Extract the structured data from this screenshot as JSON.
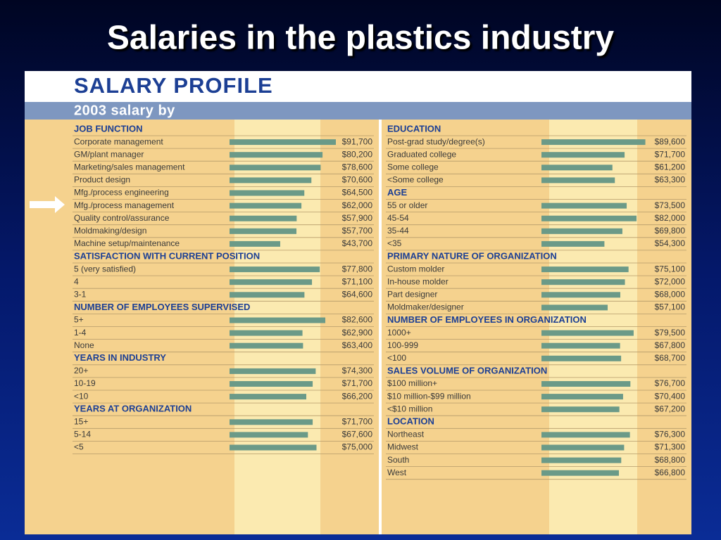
{
  "slide_title": "Salaries in the plastics industry",
  "profile": {
    "title": "SALARY PROFILE",
    "subtitle": "2003 salary by",
    "columns": [
      [
        {
          "heading": "JOB FUNCTION",
          "items": [
            {
              "label": "Corporate management",
              "value": 91700,
              "value_label": "$91,700"
            },
            {
              "label": "GM/plant manager",
              "value": 80200,
              "value_label": "$80,200"
            },
            {
              "label": "Marketing/sales management",
              "value": 78600,
              "value_label": "$78,600"
            },
            {
              "label": "Product design",
              "value": 70600,
              "value_label": "$70,600"
            },
            {
              "label": "Mfg./process engineering",
              "value": 64500,
              "value_label": "$64,500"
            },
            {
              "label": "Mfg./process management",
              "value": 62000,
              "value_label": "$62,000"
            },
            {
              "label": "Quality control/assurance",
              "value": 57900,
              "value_label": "$57,900"
            },
            {
              "label": "Moldmaking/design",
              "value": 57700,
              "value_label": "$57,700"
            },
            {
              "label": "Machine setup/maintenance",
              "value": 43700,
              "value_label": "$43,700"
            }
          ]
        },
        {
          "heading": "SATISFACTION WITH CURRENT POSITION",
          "items": [
            {
              "label": "5 (very satisfied)",
              "value": 77800,
              "value_label": "$77,800"
            },
            {
              "label": "4",
              "value": 71100,
              "value_label": "$71,100"
            },
            {
              "label": "3-1",
              "value": 64600,
              "value_label": "$64,600"
            }
          ]
        },
        {
          "heading": "NUMBER OF EMPLOYEES SUPERVISED",
          "items": [
            {
              "label": "5+",
              "value": 82600,
              "value_label": "$82,600"
            },
            {
              "label": "1-4",
              "value": 62900,
              "value_label": "$62,900"
            },
            {
              "label": "None",
              "value": 63400,
              "value_label": "$63,400"
            }
          ]
        },
        {
          "heading": "YEARS IN INDUSTRY",
          "items": [
            {
              "label": "20+",
              "value": 74300,
              "value_label": "$74,300"
            },
            {
              "label": "10-19",
              "value": 71700,
              "value_label": "$71,700"
            },
            {
              "label": "<10",
              "value": 66200,
              "value_label": "$66,200"
            }
          ]
        },
        {
          "heading": "YEARS AT ORGANIZATION",
          "items": [
            {
              "label": "15+",
              "value": 71700,
              "value_label": "$71,700"
            },
            {
              "label": "5-14",
              "value": 67600,
              "value_label": "$67,600"
            },
            {
              "label": "<5",
              "value": 75000,
              "value_label": "$75,000"
            }
          ]
        }
      ],
      [
        {
          "heading": "EDUCATION",
          "items": [
            {
              "label": "Post-grad study/degree(s)",
              "value": 89600,
              "value_label": "$89,600"
            },
            {
              "label": "Graduated college",
              "value": 71700,
              "value_label": "$71,700"
            },
            {
              "label": "Some college",
              "value": 61200,
              "value_label": "$61,200"
            },
            {
              "label": "<Some college",
              "value": 63300,
              "value_label": "$63,300"
            }
          ]
        },
        {
          "heading": "AGE",
          "items": [
            {
              "label": "55 or older",
              "value": 73500,
              "value_label": "$73,500"
            },
            {
              "label": "45-54",
              "value": 82000,
              "value_label": "$82,000"
            },
            {
              "label": "35-44",
              "value": 69800,
              "value_label": "$69,800"
            },
            {
              "label": "<35",
              "value": 54300,
              "value_label": "$54,300"
            }
          ]
        },
        {
          "heading": "PRIMARY NATURE OF ORGANIZATION",
          "items": [
            {
              "label": "Custom molder",
              "value": 75100,
              "value_label": "$75,100"
            },
            {
              "label": "In-house molder",
              "value": 72000,
              "value_label": "$72,000"
            },
            {
              "label": "Part designer",
              "value": 68000,
              "value_label": "$68,000"
            },
            {
              "label": "Moldmaker/designer",
              "value": 57100,
              "value_label": "$57,100"
            }
          ]
        },
        {
          "heading": "NUMBER OF EMPLOYEES IN ORGANIZATION",
          "items": [
            {
              "label": "1000+",
              "value": 79500,
              "value_label": "$79,500"
            },
            {
              "label": "100-999",
              "value": 67800,
              "value_label": "$67,800"
            },
            {
              "label": "<100",
              "value": 68700,
              "value_label": "$68,700"
            }
          ]
        },
        {
          "heading": "SALES VOLUME OF ORGANIZATION",
          "items": [
            {
              "label": "$100 million+",
              "value": 76700,
              "value_label": "$76,700"
            },
            {
              "label": "$10 million-$99 million",
              "value": 70400,
              "value_label": "$70,400"
            },
            {
              "label": "<$10 million",
              "value": 67200,
              "value_label": "$67,200"
            }
          ]
        },
        {
          "heading": "LOCATION",
          "items": [
            {
              "label": "Northeast",
              "value": 76300,
              "value_label": "$76,300"
            },
            {
              "label": "Midwest",
              "value": 71300,
              "value_label": "$71,300"
            },
            {
              "label": "South",
              "value": 68800,
              "value_label": "$68,800"
            },
            {
              "label": "West",
              "value": 66800,
              "value_label": "$66,800"
            }
          ]
        }
      ]
    ]
  }
}
